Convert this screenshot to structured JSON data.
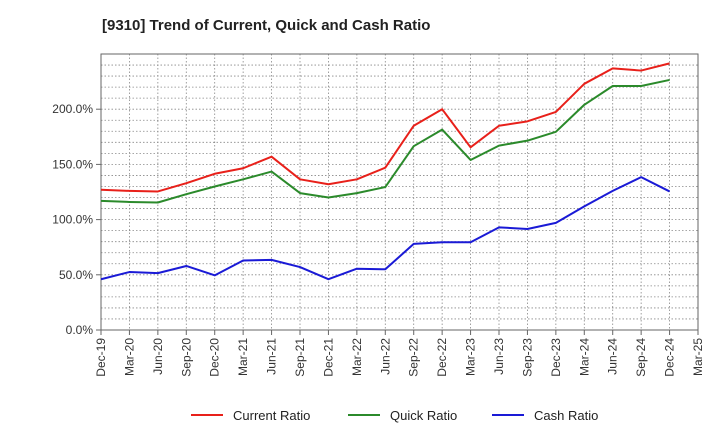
{
  "chart_data": {
    "type": "line",
    "title": "[9310]  Trend of Current, Quick and Cash Ratio",
    "xlabel": "",
    "ylabel": "",
    "x_tick_labels": [
      "Dec-19",
      "Mar-20",
      "Jun-20",
      "Sep-20",
      "Dec-20",
      "Mar-21",
      "Jun-21",
      "Sep-21",
      "Dec-21",
      "Mar-22",
      "Jun-22",
      "Sep-22",
      "Dec-22",
      "Mar-23",
      "Jun-23",
      "Sep-23",
      "Dec-23",
      "Mar-24",
      "Jun-24",
      "Sep-24",
      "Dec-24",
      "Mar-25"
    ],
    "y_tick_labels": [
      "0.0%",
      "50.0%",
      "100.0%",
      "150.0%",
      "200.0%"
    ],
    "y_ticks": [
      0,
      50,
      100,
      150,
      200
    ],
    "ylim": [
      0,
      250
    ],
    "grid": true,
    "legend_position": "bottom",
    "categories": [
      "Dec-19",
      "Mar-20",
      "Jun-20",
      "Sep-20",
      "Dec-20",
      "Mar-21",
      "Jun-21",
      "Sep-21",
      "Dec-21",
      "Mar-22",
      "Jun-22",
      "Sep-22",
      "Dec-22",
      "Mar-23",
      "Jun-23",
      "Sep-23",
      "Dec-23",
      "Mar-24",
      "Jun-24",
      "Sep-24",
      "Dec-24"
    ],
    "series": [
      {
        "name": "Current Ratio",
        "color": "#e8201a",
        "values": [
          127,
          126,
          125.5,
          133,
          141.5,
          146.5,
          157,
          136.5,
          132,
          136.5,
          147,
          185,
          200,
          165.5,
          185,
          189,
          197.5,
          223,
          237,
          235,
          241.5
        ]
      },
      {
        "name": "Quick Ratio",
        "color": "#2b8a2b",
        "values": [
          117,
          116,
          115.5,
          123,
          130,
          136.5,
          143.5,
          124,
          120,
          124,
          129.5,
          166.5,
          181.5,
          154,
          167,
          171.5,
          179.5,
          204,
          221,
          221,
          226.5
        ]
      },
      {
        "name": "Cash Ratio",
        "color": "#1a1ad6",
        "values": [
          46,
          52.5,
          51.5,
          58,
          49.5,
          63,
          63.5,
          57,
          46,
          55.5,
          55,
          78,
          79.5,
          79.5,
          93,
          91.5,
          97,
          112,
          126,
          138.5,
          125.5
        ]
      }
    ]
  }
}
